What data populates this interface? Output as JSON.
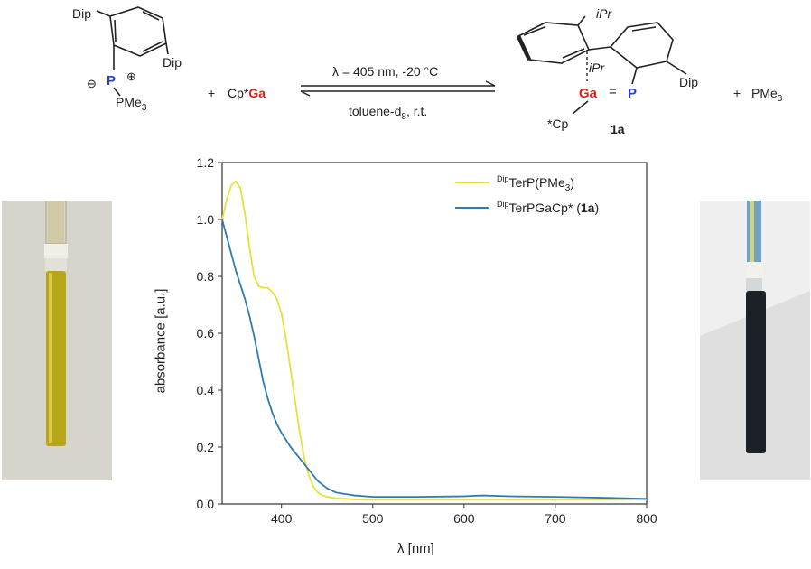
{
  "scheme": {
    "reactant": {
      "sub_left": "Dip",
      "sub_right": "Dip",
      "phosphorus": "P",
      "minus": "⊖",
      "plus": "⊕",
      "pme3": "PMe",
      "pme3_sub": "3"
    },
    "plus1": "+",
    "reagent_prefix": "Cp*",
    "reagent_metal": "Ga",
    "arrow_top": "λ = 405 nm, -20 °C",
    "arrow_bottom": "toluene-d",
    "arrow_bottom_sub": "8",
    "arrow_bottom_suffix": ", r.t.",
    "product": {
      "ipr_top": "iPr",
      "ipr_mid": "iPr",
      "ga": "Ga",
      "double_bond": "=",
      "p": "P",
      "dip": "Dip",
      "cp": "*Cp",
      "label": "1a"
    },
    "plus2": "+",
    "byproduct": "PMe",
    "byproduct_sub": "3"
  },
  "photos": {
    "left_color": "#b7a51a",
    "right_color": "#1c2128"
  },
  "colors": {
    "series1": "#e8e03a",
    "series2": "#2f7bb4",
    "axis": "#333333"
  },
  "chart_data": {
    "type": "line",
    "title": "",
    "xlabel": "λ [nm]",
    "ylabel": "absorbance [a.u.]",
    "xlim": [
      335,
      800
    ],
    "ylim": [
      0,
      1.2
    ],
    "xticks": [
      "400",
      "500",
      "600",
      "700",
      "800"
    ],
    "yticks": [
      "0.0",
      "0.2",
      "0.4",
      "0.6",
      "0.8",
      "1.0",
      "1.2"
    ],
    "legend_position": "top-right",
    "grid": false,
    "series": [
      {
        "name": "DipTerP(PMe3)",
        "legend_sup": "Dip",
        "legend_main": "TerP(PMe",
        "legend_sub": "3",
        "legend_end": ")",
        "x": [
          335,
          340,
          345,
          350,
          355,
          360,
          365,
          370,
          375,
          380,
          385,
          390,
          395,
          400,
          405,
          410,
          415,
          420,
          425,
          430,
          435,
          440,
          445,
          450,
          460,
          470,
          480,
          500,
          550,
          600,
          650,
          700,
          750,
          800
        ],
        "y": [
          1.0,
          1.07,
          1.12,
          1.135,
          1.11,
          1.02,
          0.9,
          0.8,
          0.765,
          0.76,
          0.76,
          0.745,
          0.72,
          0.67,
          0.58,
          0.47,
          0.36,
          0.25,
          0.16,
          0.1,
          0.06,
          0.04,
          0.03,
          0.025,
          0.02,
          0.018,
          0.016,
          0.015,
          0.015,
          0.015,
          0.015,
          0.015,
          0.015,
          0.015
        ]
      },
      {
        "name": "DipTerPGaCp* (1a)",
        "legend_sup": "Dip",
        "legend_main": "TerPGaCp* (",
        "legend_bold": "1a",
        "legend_end": ")",
        "x": [
          335,
          340,
          345,
          350,
          355,
          360,
          365,
          370,
          375,
          380,
          385,
          390,
          395,
          400,
          410,
          420,
          430,
          440,
          450,
          460,
          480,
          500,
          550,
          600,
          620,
          650,
          700,
          750,
          800
        ],
        "y": [
          1.0,
          0.94,
          0.88,
          0.82,
          0.77,
          0.72,
          0.66,
          0.59,
          0.51,
          0.43,
          0.37,
          0.32,
          0.28,
          0.25,
          0.2,
          0.16,
          0.12,
          0.08,
          0.055,
          0.04,
          0.03,
          0.025,
          0.025,
          0.027,
          0.03,
          0.027,
          0.025,
          0.022,
          0.018
        ]
      }
    ]
  }
}
